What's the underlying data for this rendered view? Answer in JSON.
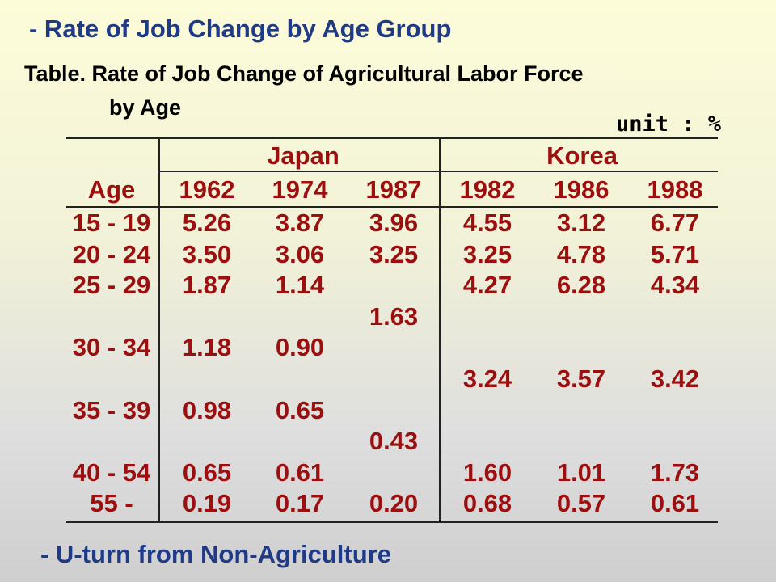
{
  "title": "- Rate of Job Change by Age Group",
  "caption": {
    "line1": "Table. Rate of Job Change of Agricultural Labor Force",
    "line2": "by Age"
  },
  "unit": "unit : %",
  "table": {
    "groups": [
      "Japan",
      "Korea"
    ],
    "age_header": "Age",
    "years": [
      "1962",
      "1974",
      "1987",
      "1982",
      "1986",
      "1988"
    ],
    "rows": [
      {
        "age": "15 - 19",
        "values": [
          "5.26",
          "3.87",
          "3.96",
          "4.55",
          "3.12",
          "6.77"
        ]
      },
      {
        "age": "20 - 24",
        "values": [
          "3.50",
          "3.06",
          "3.25",
          "3.25",
          "4.78",
          "5.71"
        ]
      },
      {
        "age": "25 - 29",
        "values": [
          "1.87",
          "1.14",
          "",
          "4.27",
          "6.28",
          "4.34"
        ]
      },
      {
        "age": "",
        "values": [
          "",
          "",
          "1.63",
          "",
          "",
          ""
        ]
      },
      {
        "age": "30 - 34",
        "values": [
          "1.18",
          "0.90",
          "",
          "",
          "",
          ""
        ]
      },
      {
        "age": "",
        "values": [
          "",
          "",
          "",
          "3.24",
          "3.57",
          "3.42"
        ]
      },
      {
        "age": "35 - 39",
        "values": [
          "0.98",
          "0.65",
          "",
          "",
          "",
          ""
        ]
      },
      {
        "age": "",
        "values": [
          "",
          "",
          "0.43",
          "",
          "",
          ""
        ]
      },
      {
        "age": "40 - 54",
        "values": [
          "0.65",
          "0.61",
          "",
          "1.60",
          "1.01",
          "1.73"
        ]
      },
      {
        "age": "55 -",
        "values": [
          "0.19",
          "0.17",
          "0.20",
          "0.68",
          "0.57",
          "0.61"
        ]
      }
    ]
  },
  "footer": "- U-turn from Non-Agriculture",
  "colors": {
    "title": "#1f3a86",
    "table_text": "#9c0f0f"
  }
}
